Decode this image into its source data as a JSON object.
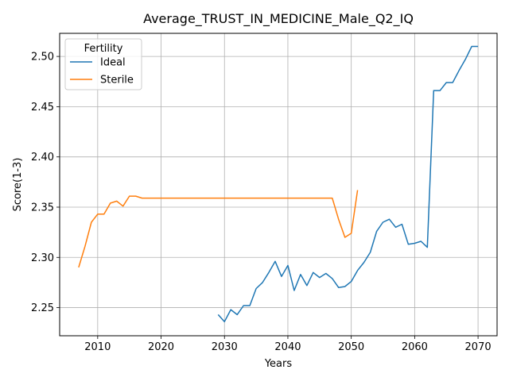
{
  "chart_data": {
    "type": "line",
    "title": "Average_TRUST_IN_MEDICINE_Male_Q2_IQ",
    "xlabel": "Years",
    "ylabel": "Score(1-3)",
    "xlim": [
      2004,
      2073
    ],
    "ylim": [
      2.222,
      2.523
    ],
    "x_ticks": [
      2010,
      2020,
      2030,
      2040,
      2050,
      2060,
      2070
    ],
    "y_ticks": [
      2.25,
      2.3,
      2.35,
      2.4,
      2.45,
      2.5
    ],
    "y_tick_labels": [
      "2.25",
      "2.30",
      "2.35",
      "2.40",
      "2.45",
      "2.50"
    ],
    "grid": true,
    "legend": {
      "title": "Fertility",
      "placement": "top-left"
    },
    "series": [
      {
        "name": "Ideal",
        "color": "#1f77b4",
        "x": [
          2029,
          2030,
          2031,
          2032,
          2033,
          2034,
          2035,
          2036,
          2037,
          2038,
          2039,
          2040,
          2041,
          2042,
          2043,
          2044,
          2045,
          2046,
          2047,
          2048,
          2049,
          2050,
          2051,
          2052,
          2053,
          2054,
          2055,
          2056,
          2057,
          2058,
          2059,
          2060,
          2061,
          2062,
          2063,
          2064,
          2065,
          2066,
          2067,
          2068,
          2069,
          2070
        ],
        "y": [
          2.243,
          2.236,
          2.248,
          2.243,
          2.252,
          2.252,
          2.269,
          2.275,
          2.285,
          2.296,
          2.281,
          2.292,
          2.267,
          2.283,
          2.272,
          2.285,
          2.28,
          2.284,
          2.279,
          2.27,
          2.271,
          2.276,
          2.287,
          2.295,
          2.305,
          2.326,
          2.335,
          2.338,
          2.33,
          2.333,
          2.313,
          2.314,
          2.316,
          2.31,
          2.466,
          2.466,
          2.474,
          2.474,
          2.486,
          2.497,
          2.51,
          2.51
        ]
      },
      {
        "name": "Sterile",
        "color": "#ff7f0e",
        "x": [
          2007,
          2008,
          2009,
          2010,
          2011,
          2012,
          2013,
          2014,
          2015,
          2016,
          2017,
          2018,
          2019,
          2020,
          2025,
          2030,
          2035,
          2040,
          2045,
          2046,
          2047,
          2048,
          2049,
          2050,
          2051
        ],
        "y": [
          2.29,
          2.311,
          2.335,
          2.343,
          2.343,
          2.354,
          2.356,
          2.351,
          2.361,
          2.361,
          2.359,
          2.359,
          2.359,
          2.359,
          2.359,
          2.359,
          2.359,
          2.359,
          2.359,
          2.359,
          2.359,
          2.338,
          2.32,
          2.324,
          2.367
        ]
      }
    ]
  }
}
